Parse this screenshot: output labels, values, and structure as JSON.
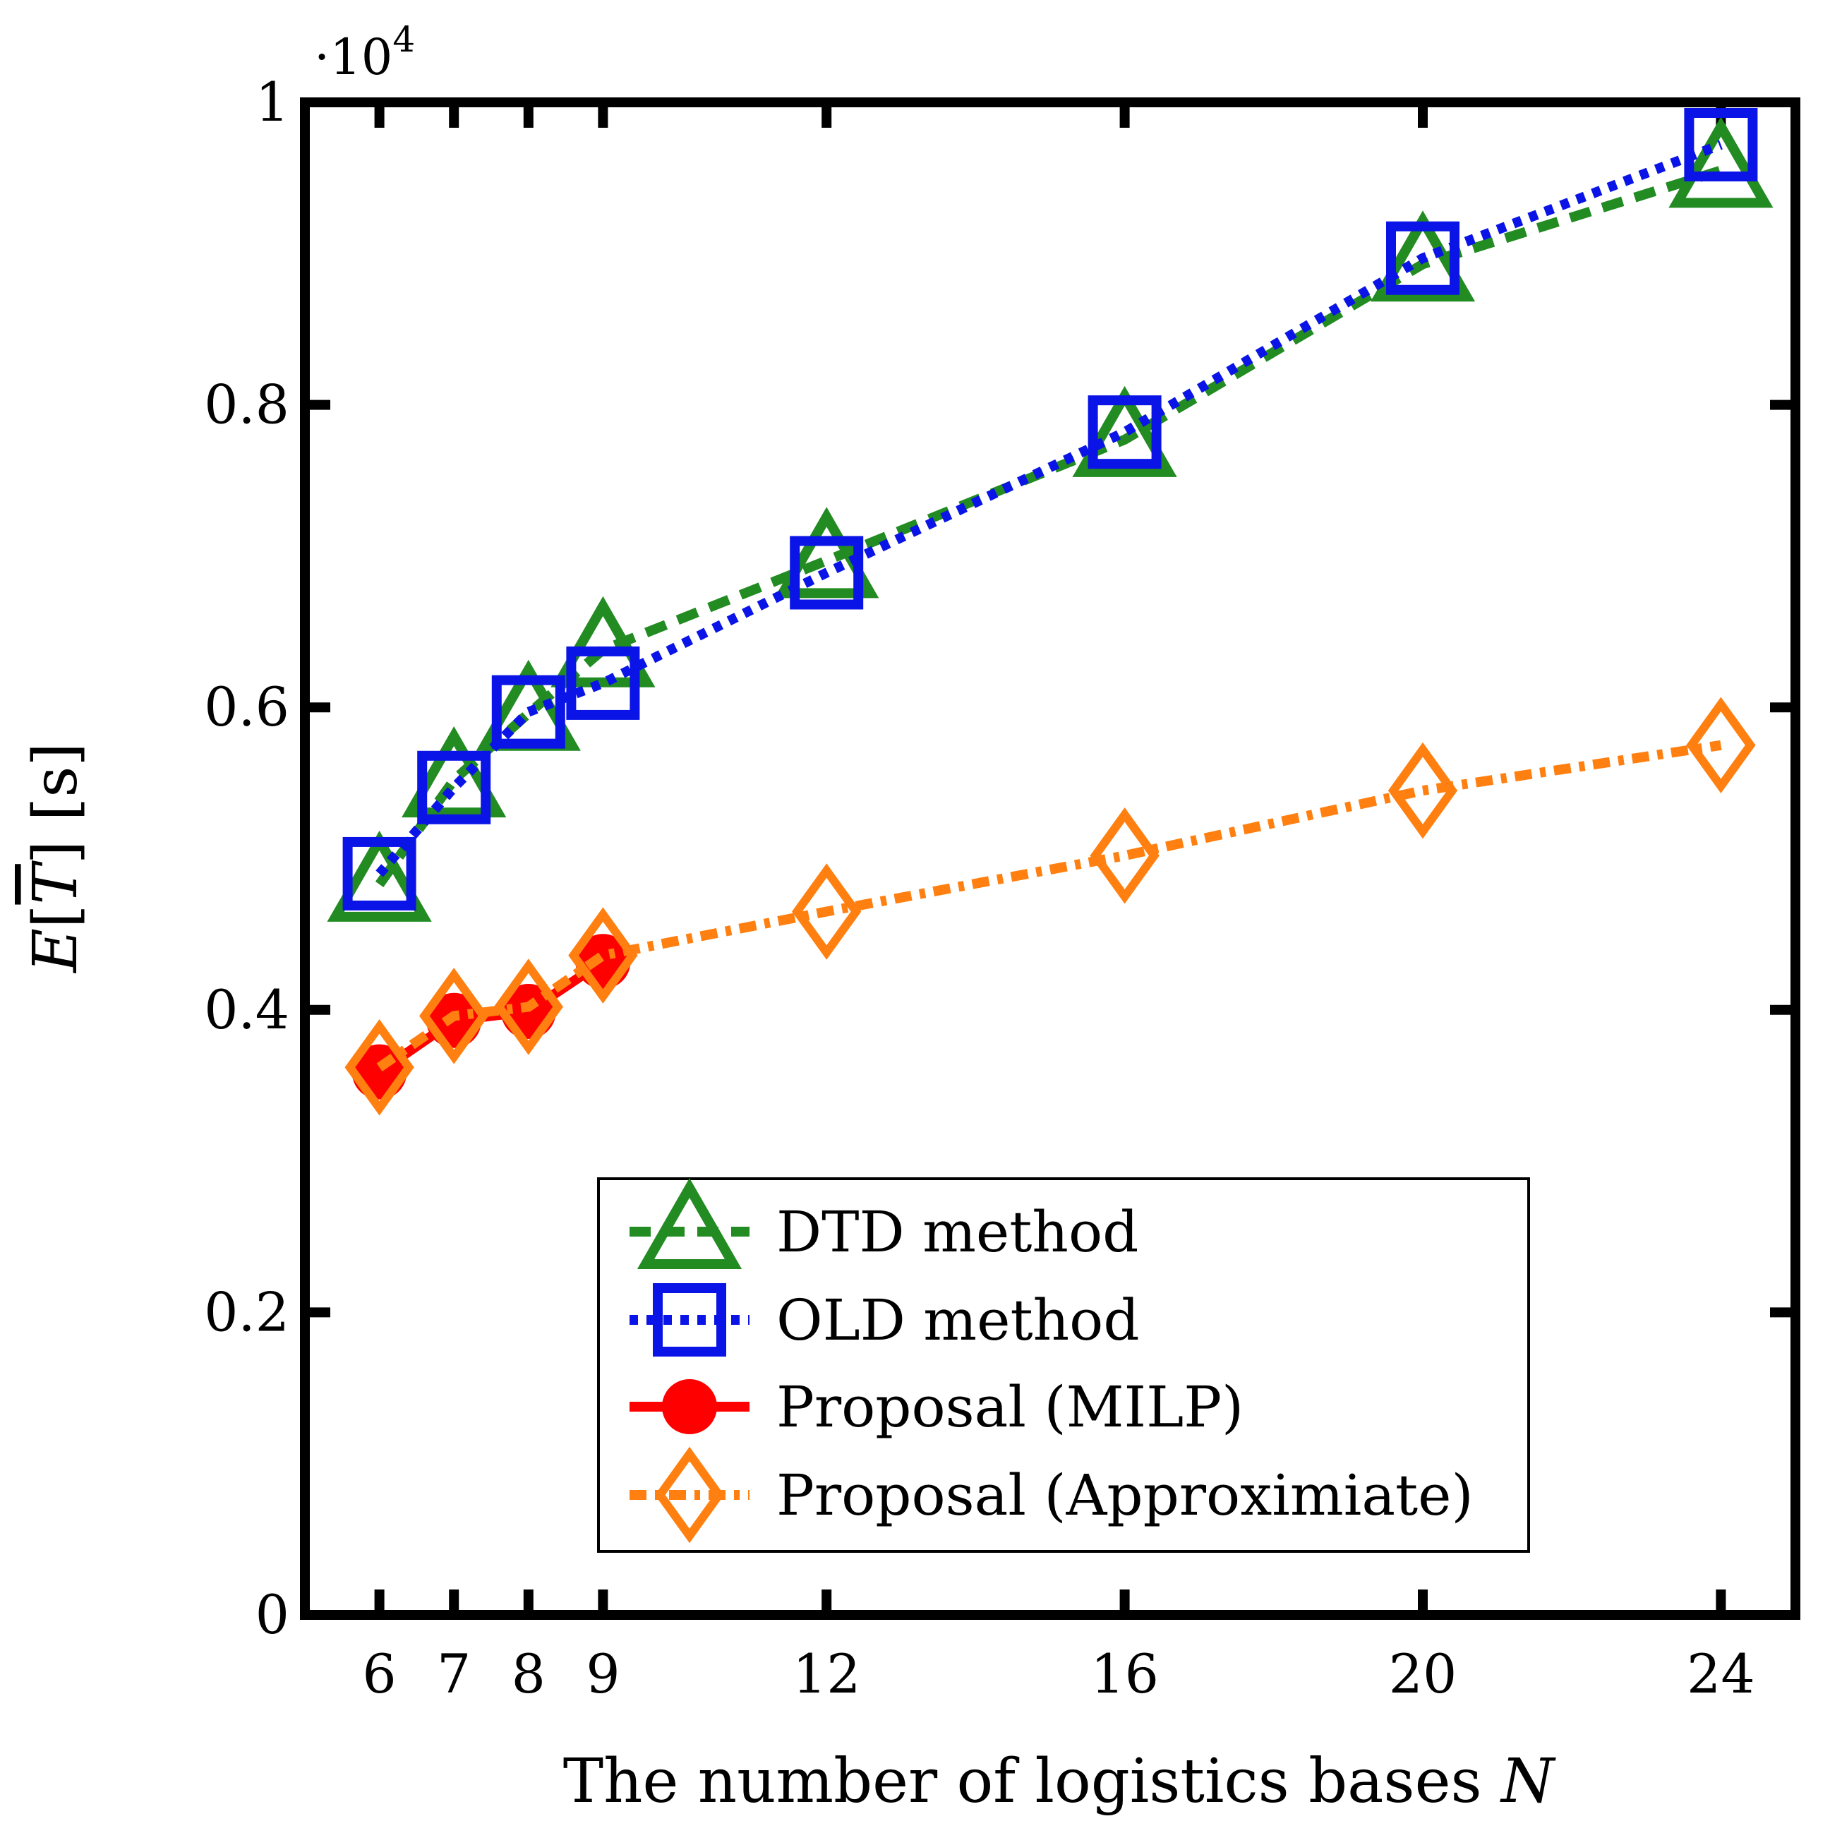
{
  "chart_data": {
    "type": "line",
    "title": "",
    "xlabel": "The number of logistics bases",
    "xlabel_var": "N",
    "ylabel": "E[T] [s]",
    "ylabel_parts": {
      "E": "E",
      "T": "T",
      "unit": "[s]"
    },
    "y_multiplier": "·10",
    "y_multiplier_exp": "4",
    "xlim": [
      5,
      25
    ],
    "ylim": [
      0,
      1
    ],
    "x_ticks": [
      6,
      7,
      8,
      9,
      12,
      16,
      20,
      24
    ],
    "x_tick_labels": [
      "6",
      "7",
      "8",
      "9",
      "12",
      "16",
      "20",
      "24"
    ],
    "y_ticks": [
      0,
      0.2,
      0.4,
      0.6,
      0.8,
      1
    ],
    "y_tick_labels": [
      "0",
      "0.2",
      "0.4",
      "0.6",
      "0.8",
      "1"
    ],
    "grid": false,
    "legend_position": "lower-right",
    "series": [
      {
        "name": "DTD method",
        "color": "#228b22",
        "marker": "triangle",
        "line": "dashed",
        "x": [
          6,
          7,
          8,
          9,
          12,
          16,
          20,
          24
        ],
        "y": [
          0.483,
          0.552,
          0.596,
          0.638,
          0.697,
          0.777,
          0.893,
          0.955
        ]
      },
      {
        "name": "OLD method",
        "color": "#0a14e6",
        "marker": "square",
        "line": "dotted",
        "x": [
          6,
          7,
          8,
          9,
          12,
          16,
          20,
          24
        ],
        "y": [
          0.49,
          0.547,
          0.597,
          0.616,
          0.689,
          0.782,
          0.897,
          0.972
        ]
      },
      {
        "name": "Proposal (MILP)",
        "color": "#ff0000",
        "marker": "circle",
        "line": "solid",
        "x": [
          6,
          7,
          8,
          9
        ],
        "y": [
          0.359,
          0.393,
          0.399,
          0.432
        ]
      },
      {
        "name": "Proposal (Approximiate)",
        "color": "#ff8010",
        "marker": "diamond",
        "line": "dashdot",
        "x": [
          6,
          7,
          8,
          9,
          12,
          16,
          20,
          24
        ],
        "y": [
          0.362,
          0.396,
          0.402,
          0.436,
          0.465,
          0.502,
          0.545,
          0.575
        ]
      }
    ]
  }
}
